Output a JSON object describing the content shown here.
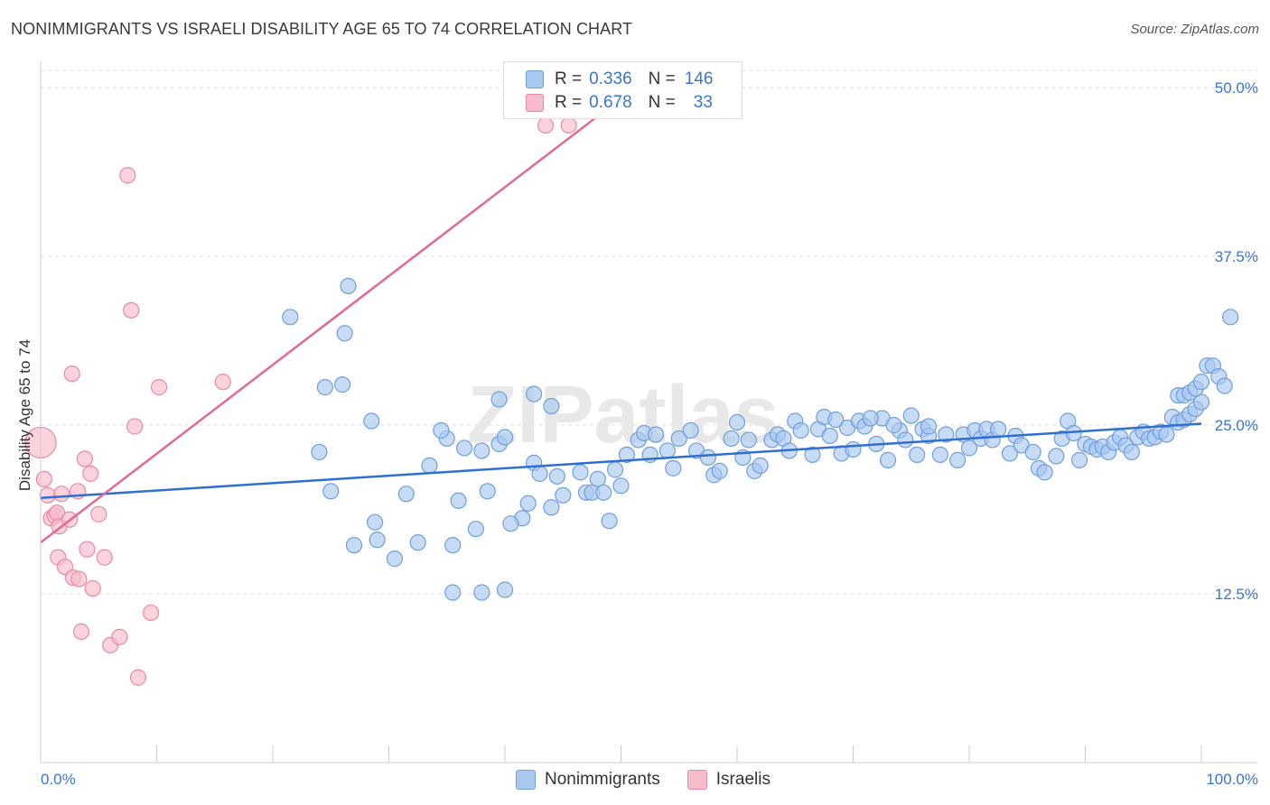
{
  "title": "NONIMMIGRANTS VS ISRAELI DISABILITY AGE 65 TO 74 CORRELATION CHART",
  "source": "Source: ZipAtlas.com",
  "watermark": "ZIPatlas",
  "legend": {
    "rows": [
      {
        "r_label": "R =",
        "r_value": "0.336",
        "n_label": "N =",
        "n_value": "146",
        "color": "#a9c8f0",
        "border": "#6f9fdc"
      },
      {
        "r_label": "R =",
        "r_value": "0.678",
        "n_label": "N =",
        "n_value": "33",
        "color": "#f7bccb",
        "border": "#e88aa5"
      }
    ]
  },
  "bottom_legend": [
    {
      "label": "Nonimmigrants",
      "color": "#a9c8f0",
      "border": "#6f9fdc"
    },
    {
      "label": "Israelis",
      "color": "#f7bccb",
      "border": "#e88aa5"
    }
  ],
  "chart_data": {
    "type": "scatter",
    "title": "NONIMMIGRANTS VS ISRAELI DISABILITY AGE 65 TO 74 CORRELATION CHART",
    "xlabel": "",
    "ylabel": "Disability Age 65 to 74",
    "xlim": [
      0,
      100
    ],
    "ylim": [
      0,
      52
    ],
    "x_tick_labels": [
      "0.0%",
      "100.0%"
    ],
    "y_ticks": [
      12.5,
      25.0,
      37.5,
      50.0
    ],
    "y_tick_labels": [
      "12.5%",
      "25.0%",
      "37.5%",
      "50.0%"
    ],
    "grid": true,
    "legend_position": "top-center",
    "series": [
      {
        "name": "Nonimmigrants",
        "color": "#a9c8f0",
        "stroke": "#6f9fdc",
        "trend": {
          "x0": 0,
          "y0": 19.6,
          "x1": 100,
          "y1": 25.1,
          "color": "#2f6fd0"
        },
        "points": [
          [
            21.5,
            33.0
          ],
          [
            26.5,
            35.3
          ],
          [
            26.2,
            31.8
          ],
          [
            24.5,
            27.8
          ],
          [
            26.0,
            28.0
          ],
          [
            28.5,
            25.3
          ],
          [
            24.0,
            23.0
          ],
          [
            25.0,
            20.1
          ],
          [
            28.8,
            17.8
          ],
          [
            27.0,
            16.1
          ],
          [
            29.0,
            16.5
          ],
          [
            30.5,
            15.1
          ],
          [
            31.5,
            19.9
          ],
          [
            32.5,
            16.3
          ],
          [
            35.5,
            16.1
          ],
          [
            36.0,
            19.4
          ],
          [
            35.5,
            12.6
          ],
          [
            38.0,
            12.6
          ],
          [
            40.0,
            12.8
          ],
          [
            37.5,
            17.3
          ],
          [
            35.0,
            24.0
          ],
          [
            34.5,
            24.6
          ],
          [
            33.5,
            22.0
          ],
          [
            36.5,
            23.3
          ],
          [
            38.0,
            23.1
          ],
          [
            39.5,
            23.6
          ],
          [
            40.0,
            24.1
          ],
          [
            38.5,
            20.1
          ],
          [
            39.5,
            26.9
          ],
          [
            42.5,
            27.3
          ],
          [
            44.0,
            26.4
          ],
          [
            42.5,
            22.2
          ],
          [
            42.0,
            19.2
          ],
          [
            41.5,
            18.1
          ],
          [
            40.5,
            17.7
          ],
          [
            43.0,
            21.4
          ],
          [
            44.5,
            21.2
          ],
          [
            45.0,
            19.8
          ],
          [
            44.0,
            18.9
          ],
          [
            46.5,
            21.5
          ],
          [
            47.0,
            20.0
          ],
          [
            47.5,
            20.0
          ],
          [
            48.0,
            21.0
          ],
          [
            48.5,
            20.0
          ],
          [
            49.0,
            17.9
          ],
          [
            49.5,
            21.7
          ],
          [
            50.0,
            20.5
          ],
          [
            50.5,
            22.8
          ],
          [
            51.5,
            23.9
          ],
          [
            52.0,
            24.4
          ],
          [
            53.0,
            24.3
          ],
          [
            52.5,
            22.8
          ],
          [
            54.0,
            23.1
          ],
          [
            54.5,
            21.8
          ],
          [
            55.0,
            24.0
          ],
          [
            56.0,
            24.6
          ],
          [
            56.5,
            23.1
          ],
          [
            57.5,
            22.6
          ],
          [
            58.0,
            21.3
          ],
          [
            58.5,
            21.6
          ],
          [
            59.5,
            24.0
          ],
          [
            60.0,
            25.2
          ],
          [
            60.5,
            22.6
          ],
          [
            61.0,
            23.9
          ],
          [
            61.5,
            21.6
          ],
          [
            62.0,
            22.0
          ],
          [
            63.0,
            23.9
          ],
          [
            63.5,
            24.3
          ],
          [
            64.0,
            24.0
          ],
          [
            64.5,
            23.1
          ],
          [
            65.0,
            25.3
          ],
          [
            65.5,
            24.6
          ],
          [
            66.5,
            22.8
          ],
          [
            67.0,
            24.7
          ],
          [
            67.5,
            25.6
          ],
          [
            68.0,
            24.2
          ],
          [
            69.0,
            22.9
          ],
          [
            69.5,
            24.8
          ],
          [
            70.0,
            23.2
          ],
          [
            70.5,
            25.3
          ],
          [
            71.0,
            24.9
          ],
          [
            72.0,
            23.6
          ],
          [
            72.5,
            25.5
          ],
          [
            73.0,
            22.4
          ],
          [
            74.0,
            24.6
          ],
          [
            74.5,
            23.9
          ],
          [
            75.5,
            22.8
          ],
          [
            76.0,
            24.7
          ],
          [
            76.5,
            24.2
          ],
          [
            77.5,
            22.8
          ],
          [
            78.0,
            24.3
          ],
          [
            79.0,
            22.4
          ],
          [
            79.5,
            24.3
          ],
          [
            80.0,
            23.3
          ],
          [
            80.5,
            24.6
          ],
          [
            81.0,
            24.0
          ],
          [
            81.5,
            24.7
          ],
          [
            82.0,
            23.9
          ],
          [
            82.5,
            24.7
          ],
          [
            83.5,
            22.9
          ],
          [
            84.0,
            24.2
          ],
          [
            84.5,
            23.5
          ],
          [
            85.5,
            23.0
          ],
          [
            86.0,
            21.8
          ],
          [
            86.5,
            21.5
          ],
          [
            87.5,
            22.7
          ],
          [
            88.0,
            24.0
          ],
          [
            88.5,
            25.3
          ],
          [
            89.0,
            24.4
          ],
          [
            89.5,
            22.4
          ],
          [
            90.0,
            23.6
          ],
          [
            90.5,
            23.4
          ],
          [
            91.0,
            23.2
          ],
          [
            91.5,
            23.4
          ],
          [
            92.0,
            23.0
          ],
          [
            92.5,
            23.7
          ],
          [
            93.0,
            24.1
          ],
          [
            93.5,
            23.5
          ],
          [
            94.0,
            23.0
          ],
          [
            94.5,
            24.1
          ],
          [
            95.0,
            24.5
          ],
          [
            95.5,
            24.0
          ],
          [
            96.0,
            24.1
          ],
          [
            96.5,
            24.5
          ],
          [
            97.0,
            24.3
          ],
          [
            97.5,
            25.6
          ],
          [
            98.0,
            25.2
          ],
          [
            98.5,
            25.4
          ],
          [
            99.0,
            25.8
          ],
          [
            99.5,
            26.2
          ],
          [
            100.0,
            26.7
          ],
          [
            98.0,
            27.2
          ],
          [
            98.5,
            27.2
          ],
          [
            99.0,
            27.4
          ],
          [
            99.5,
            27.7
          ],
          [
            100.0,
            28.2
          ],
          [
            100.5,
            29.4
          ],
          [
            101.0,
            29.4
          ],
          [
            101.5,
            28.6
          ],
          [
            102.0,
            27.9
          ],
          [
            102.5,
            33.0
          ],
          [
            76.5,
            24.9
          ],
          [
            75.0,
            25.7
          ],
          [
            73.5,
            25.0
          ],
          [
            71.5,
            25.5
          ],
          [
            68.5,
            25.4
          ]
        ]
      },
      {
        "name": "Israelis",
        "color": "#f7bccb",
        "stroke": "#e88aa5",
        "trend": {
          "x0": 0,
          "y0": 16.3,
          "x1": 50,
          "y1": 49.2,
          "color": "#e06a92"
        },
        "points": [
          [
            0.0,
            23.7
          ],
          [
            0.3,
            21.0
          ],
          [
            0.6,
            19.8
          ],
          [
            0.9,
            18.1
          ],
          [
            1.2,
            18.3
          ],
          [
            1.4,
            18.5
          ],
          [
            1.5,
            15.2
          ],
          [
            1.6,
            17.5
          ],
          [
            1.8,
            19.9
          ],
          [
            2.1,
            14.5
          ],
          [
            2.5,
            18.0
          ],
          [
            2.7,
            28.8
          ],
          [
            2.8,
            13.7
          ],
          [
            3.2,
            20.1
          ],
          [
            3.3,
            13.6
          ],
          [
            3.5,
            9.7
          ],
          [
            3.8,
            22.5
          ],
          [
            4.0,
            15.8
          ],
          [
            4.3,
            21.4
          ],
          [
            4.5,
            12.9
          ],
          [
            5.0,
            18.4
          ],
          [
            5.5,
            15.2
          ],
          [
            6.0,
            8.7
          ],
          [
            6.8,
            9.3
          ],
          [
            7.5,
            43.5
          ],
          [
            7.8,
            33.5
          ],
          [
            8.1,
            24.9
          ],
          [
            8.4,
            6.3
          ],
          [
            9.5,
            11.1
          ],
          [
            10.2,
            27.8
          ],
          [
            15.7,
            28.2
          ],
          [
            43.5,
            47.2
          ],
          [
            45.5,
            47.2
          ]
        ]
      }
    ]
  }
}
